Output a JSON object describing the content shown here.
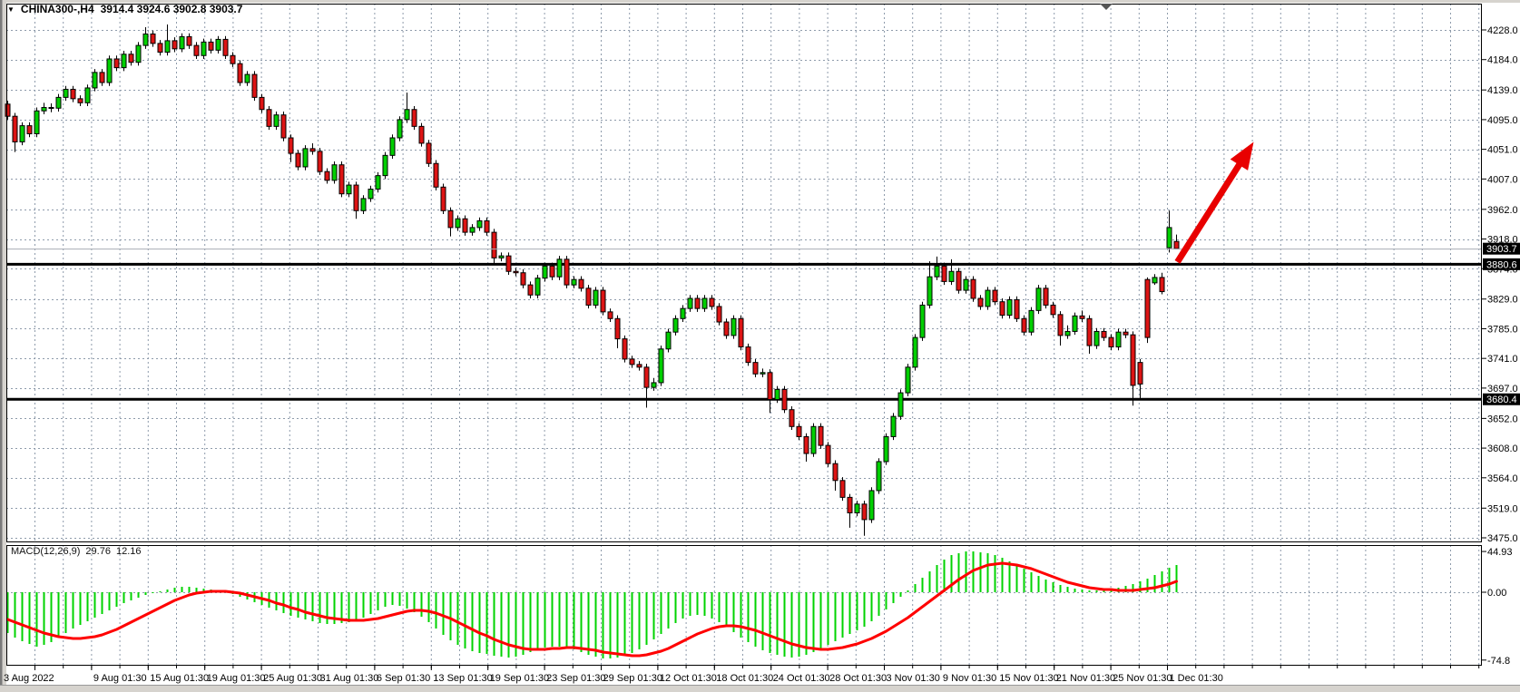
{
  "header": {
    "dropdown_glyph": "▼",
    "symbol_period": "CHINA300-,H4",
    "ohlc_text": "3914.4 3924.6 3902.8 3903.7"
  },
  "price_axis": {
    "tick_labels": [
      "4228.0",
      "4184.0",
      "4139.0",
      "4095.0",
      "4051.0",
      "4007.0",
      "3962.0",
      "3918.0",
      "3874.0",
      "3829.0",
      "3785.0",
      "3741.0",
      "3697.0",
      "3652.0",
      "3608.0",
      "3564.0",
      "3519.0",
      "3475.0"
    ],
    "bid_badge": "3903.7",
    "line_badges": [
      "3880.6",
      "3680.4"
    ]
  },
  "time_axis": {
    "labels": [
      "3 Aug 2022",
      "9 Aug 01:30",
      "15 Aug 01:30",
      "19 Aug 01:30",
      "25 Aug 01:30",
      "31 Aug 01:30",
      "6 Sep 01:30",
      "13 Sep 01:30",
      "19 Sep 01:30",
      "23 Sep 01:30",
      "29 Sep 01:30",
      "12 Oct 01:30",
      "18 Oct 01:30",
      "24 Oct 01:30",
      "28 Oct 01:30",
      "3 Nov 01:30",
      "9 Nov 01:30",
      "15 Nov 01:30",
      "21 Nov 01:30",
      "25 Nov 01:30",
      "1 Dec 01:30"
    ]
  },
  "macd": {
    "name": "MACD(12,26,9)",
    "value_main": "29.76",
    "value_signal": "12.16",
    "axis_labels": [
      "44.93",
      "0.00",
      "-74.8"
    ]
  },
  "colors": {
    "bull": "#00cf00",
    "bear": "#dd1414",
    "candle_outline": "#000000",
    "grid": "#8e9bab",
    "macd_bar": "#00d300",
    "macd_signal": "#ff0000",
    "hline": "#000000",
    "bid_line": "#a8adb5",
    "badge_bg": "#000000",
    "badge_text": "#ffffff",
    "arrow": "#e80000",
    "frame": "#d6d3ce"
  },
  "chart_data": {
    "type": "candlestick",
    "symbol": "CHINA300-",
    "timeframe": "H4",
    "last_bar_ohlc": {
      "open": 3914.4,
      "high": 3924.6,
      "low": 3902.8,
      "close": 3903.7
    },
    "current_price": 3903.7,
    "horizontal_lines": [
      3880.6,
      3680.4
    ],
    "price_axis_range": {
      "top_tick": 4228.0,
      "bottom_tick": 3475.0,
      "tick_step": 44.5
    },
    "grid": "dashed",
    "candles": [
      [
        4118,
        4123,
        4095,
        4100
      ],
      [
        4100,
        4105,
        4047,
        4062
      ],
      [
        4062,
        4091,
        4057,
        4086
      ],
      [
        4086,
        4091,
        4069,
        4074
      ],
      [
        4074,
        4113,
        4069,
        4108
      ],
      [
        4108,
        4120,
        4103,
        4113
      ],
      [
        4113,
        4119,
        4106,
        4112
      ],
      [
        4112,
        4133,
        4107,
        4128
      ],
      [
        4128,
        4145,
        4123,
        4140
      ],
      [
        4140,
        4145,
        4121,
        4126
      ],
      [
        4126,
        4131,
        4115,
        4120
      ],
      [
        4120,
        4147,
        4115,
        4142
      ],
      [
        4142,
        4170,
        4137,
        4165
      ],
      [
        4165,
        4170,
        4145,
        4150
      ],
      [
        4150,
        4190,
        4145,
        4185
      ],
      [
        4185,
        4190,
        4167,
        4172
      ],
      [
        4172,
        4197,
        4167,
        4192
      ],
      [
        4192,
        4197,
        4175,
        4180
      ],
      [
        4180,
        4210,
        4175,
        4205
      ],
      [
        4205,
        4232,
        4200,
        4222
      ],
      [
        4222,
        4227,
        4203,
        4208
      ],
      [
        4208,
        4213,
        4190,
        4195
      ],
      [
        4195,
        4236,
        4190,
        4212
      ],
      [
        4212,
        4217,
        4195,
        4200
      ],
      [
        4200,
        4223,
        4195,
        4218
      ],
      [
        4218,
        4223,
        4200,
        4205
      ],
      [
        4205,
        4210,
        4185,
        4190
      ],
      [
        4190,
        4215,
        4185,
        4210
      ],
      [
        4210,
        4215,
        4193,
        4198
      ],
      [
        4198,
        4219,
        4193,
        4214
      ],
      [
        4214,
        4219,
        4185,
        4190
      ],
      [
        4190,
        4195,
        4173,
        4178
      ],
      [
        4178,
        4183,
        4145,
        4150
      ],
      [
        4150,
        4167,
        4145,
        4162
      ],
      [
        4162,
        4167,
        4123,
        4128
      ],
      [
        4128,
        4133,
        4105,
        4110
      ],
      [
        4110,
        4115,
        4080,
        4085
      ],
      [
        4085,
        4107,
        4080,
        4102
      ],
      [
        4102,
        4107,
        4063,
        4068
      ],
      [
        4068,
        4073,
        4032,
        4045
      ],
      [
        4045,
        4050,
        4020,
        4025
      ],
      [
        4025,
        4057,
        4020,
        4052
      ],
      [
        4052,
        4060,
        4043,
        4048
      ],
      [
        4048,
        4053,
        4013,
        4018
      ],
      [
        4018,
        4023,
        4000,
        4005
      ],
      [
        4005,
        4033,
        4000,
        4028
      ],
      [
        4028,
        4033,
        3980,
        3985
      ],
      [
        3985,
        4003,
        3980,
        3998
      ],
      [
        3998,
        4003,
        3948,
        3960
      ],
      [
        3960,
        3983,
        3955,
        3978
      ],
      [
        3978,
        3997,
        3973,
        3992
      ],
      [
        3992,
        4017,
        3987,
        4012
      ],
      [
        4012,
        4047,
        4007,
        4042
      ],
      [
        4042,
        4073,
        4037,
        4068
      ],
      [
        4068,
        4100,
        4063,
        4095
      ],
      [
        4095,
        4135,
        4090,
        4110
      ],
      [
        4110,
        4115,
        4080,
        4085
      ],
      [
        4085,
        4090,
        4055,
        4060
      ],
      [
        4060,
        4065,
        4025,
        4030
      ],
      [
        4030,
        4035,
        3990,
        3995
      ],
      [
        3995,
        4000,
        3955,
        3960
      ],
      [
        3960,
        3965,
        3922,
        3935
      ],
      [
        3935,
        3953,
        3930,
        3948
      ],
      [
        3948,
        3953,
        3923,
        3928
      ],
      [
        3928,
        3940,
        3923,
        3935
      ],
      [
        3935,
        3950,
        3930,
        3945
      ],
      [
        3945,
        3950,
        3923,
        3928
      ],
      [
        3928,
        3933,
        3880,
        3890
      ],
      [
        3890,
        3898,
        3885,
        3893
      ],
      [
        3893,
        3898,
        3865,
        3870
      ],
      [
        3870,
        3875,
        3863,
        3868
      ],
      [
        3868,
        3873,
        3845,
        3850
      ],
      [
        3850,
        3855,
        3830,
        3835
      ],
      [
        3835,
        3865,
        3830,
        3860
      ],
      [
        3860,
        3883,
        3855,
        3878
      ],
      [
        3878,
        3883,
        3857,
        3862
      ],
      [
        3862,
        3893,
        3857,
        3888
      ],
      [
        3888,
        3893,
        3845,
        3850
      ],
      [
        3850,
        3863,
        3845,
        3858
      ],
      [
        3858,
        3863,
        3840,
        3845
      ],
      [
        3845,
        3850,
        3815,
        3820
      ],
      [
        3820,
        3847,
        3815,
        3842
      ],
      [
        3842,
        3847,
        3805,
        3810
      ],
      [
        3810,
        3815,
        3795,
        3800
      ],
      [
        3800,
        3805,
        3756,
        3770
      ],
      [
        3770,
        3775,
        3735,
        3740
      ],
      [
        3740,
        3745,
        3727,
        3732
      ],
      [
        3732,
        3737,
        3723,
        3728
      ],
      [
        3728,
        3733,
        3668,
        3698
      ],
      [
        3698,
        3712,
        3693,
        3705
      ],
      [
        3705,
        3760,
        3700,
        3755
      ],
      [
        3755,
        3785,
        3750,
        3780
      ],
      [
        3780,
        3805,
        3775,
        3800
      ],
      [
        3800,
        3820,
        3795,
        3815
      ],
      [
        3815,
        3835,
        3810,
        3830
      ],
      [
        3830,
        3835,
        3810,
        3815
      ],
      [
        3815,
        3835,
        3810,
        3830
      ],
      [
        3830,
        3835,
        3813,
        3818
      ],
      [
        3818,
        3823,
        3790,
        3795
      ],
      [
        3795,
        3800,
        3770,
        3775
      ],
      [
        3775,
        3805,
        3770,
        3800
      ],
      [
        3800,
        3805,
        3753,
        3758
      ],
      [
        3758,
        3763,
        3730,
        3735
      ],
      [
        3735,
        3740,
        3713,
        3718
      ],
      [
        3718,
        3726,
        3713,
        3720
      ],
      [
        3720,
        3725,
        3660,
        3680
      ],
      [
        3680,
        3700,
        3675,
        3695
      ],
      [
        3695,
        3700,
        3660,
        3665
      ],
      [
        3665,
        3670,
        3635,
        3640
      ],
      [
        3640,
        3645,
        3620,
        3625
      ],
      [
        3625,
        3630,
        3588,
        3600
      ],
      [
        3600,
        3645,
        3595,
        3640
      ],
      [
        3640,
        3645,
        3607,
        3612
      ],
      [
        3612,
        3617,
        3580,
        3585
      ],
      [
        3585,
        3590,
        3545,
        3560
      ],
      [
        3560,
        3565,
        3530,
        3535
      ],
      [
        3535,
        3540,
        3490,
        3512
      ],
      [
        3512,
        3530,
        3507,
        3525
      ],
      [
        3525,
        3530,
        3478,
        3502
      ],
      [
        3502,
        3550,
        3497,
        3545
      ],
      [
        3545,
        3593,
        3540,
        3588
      ],
      [
        3588,
        3630,
        3583,
        3625
      ],
      [
        3625,
        3660,
        3620,
        3655
      ],
      [
        3655,
        3695,
        3650,
        3690
      ],
      [
        3690,
        3733,
        3685,
        3728
      ],
      [
        3728,
        3777,
        3723,
        3772
      ],
      [
        3772,
        3825,
        3767,
        3820
      ],
      [
        3820,
        3885,
        3815,
        3862
      ],
      [
        3862,
        3892,
        3857,
        3878
      ],
      [
        3878,
        3883,
        3850,
        3855
      ],
      [
        3855,
        3888,
        3850,
        3870
      ],
      [
        3870,
        3875,
        3837,
        3842
      ],
      [
        3842,
        3863,
        3837,
        3858
      ],
      [
        3858,
        3863,
        3825,
        3830
      ],
      [
        3830,
        3835,
        3813,
        3818
      ],
      [
        3818,
        3847,
        3813,
        3842
      ],
      [
        3842,
        3847,
        3820,
        3825
      ],
      [
        3825,
        3830,
        3800,
        3805
      ],
      [
        3805,
        3833,
        3800,
        3828
      ],
      [
        3828,
        3833,
        3795,
        3800
      ],
      [
        3800,
        3805,
        3775,
        3780
      ],
      [
        3780,
        3817,
        3775,
        3812
      ],
      [
        3812,
        3850,
        3807,
        3845
      ],
      [
        3845,
        3850,
        3815,
        3820
      ],
      [
        3820,
        3825,
        3801,
        3806
      ],
      [
        3806,
        3811,
        3760,
        3775
      ],
      [
        3775,
        3790,
        3770,
        3781
      ],
      [
        3781,
        3809,
        3776,
        3804
      ],
      [
        3804,
        3812,
        3795,
        3800
      ],
      [
        3800,
        3805,
        3748,
        3760
      ],
      [
        3760,
        3786,
        3755,
        3781
      ],
      [
        3781,
        3786,
        3767,
        3772
      ],
      [
        3772,
        3777,
        3753,
        3758
      ],
      [
        3758,
        3785,
        3753,
        3780
      ],
      [
        3780,
        3785,
        3771,
        3776
      ],
      [
        3776,
        3781,
        3671,
        3701
      ],
      [
        3735,
        3740,
        3682,
        3703
      ],
      [
        3858,
        3861,
        3764,
        3772
      ],
      [
        3853,
        3866,
        3850,
        3861
      ],
      [
        3861,
        3868,
        3836,
        3840
      ],
      [
        3905,
        3960,
        3898,
        3935
      ],
      [
        3914.4,
        3924.6,
        3902.8,
        3903.7
      ]
    ],
    "indicator": {
      "type": "MACD",
      "params": [
        12,
        26,
        9
      ],
      "last_macd": 29.76,
      "last_signal": 12.16,
      "axis": {
        "max": 44.93,
        "zero": 0.0,
        "min": -74.8
      },
      "histogram": [
        -45,
        -50,
        -54,
        -57,
        -60,
        -58,
        -55,
        -50,
        -45,
        -40,
        -36,
        -32,
        -28,
        -24,
        -20,
        -16,
        -12,
        -9,
        -6,
        -3,
        -1,
        1,
        3,
        5,
        6,
        6,
        5,
        4,
        3,
        2,
        0,
        -2,
        -5,
        -8,
        -11,
        -14,
        -17,
        -20,
        -23,
        -26,
        -28,
        -30,
        -32,
        -34,
        -35,
        -35,
        -34,
        -33,
        -31,
        -28,
        -24,
        -20,
        -16,
        -14,
        -15,
        -18,
        -22,
        -27,
        -33,
        -40,
        -47,
        -53,
        -58,
        -62,
        -65,
        -67,
        -68,
        -70,
        -71,
        -72,
        -71,
        -69,
        -66,
        -63,
        -61,
        -60,
        -60,
        -61,
        -63,
        -66,
        -69,
        -71,
        -73,
        -73,
        -72,
        -70,
        -67,
        -63,
        -58,
        -52,
        -46,
        -40,
        -34,
        -29,
        -26,
        -25,
        -26,
        -29,
        -33,
        -38,
        -44,
        -50,
        -55,
        -60,
        -64,
        -67,
        -69,
        -71,
        -72,
        -71,
        -69,
        -66,
        -62,
        -58,
        -54,
        -50,
        -46,
        -42,
        -38,
        -32,
        -26,
        -19,
        -12,
        -5,
        2,
        9,
        16,
        23,
        30,
        36,
        41,
        43,
        45,
        45,
        44,
        43,
        41,
        38,
        34,
        30,
        26,
        22,
        18,
        14,
        11,
        8,
        6,
        4,
        3,
        2,
        2,
        3,
        4,
        5,
        7,
        9,
        12,
        15,
        19,
        23,
        27,
        30
      ],
      "signal": [
        -30,
        -33,
        -36,
        -39,
        -42,
        -45,
        -47,
        -49,
        -50,
        -51,
        -51,
        -50,
        -49,
        -47,
        -44,
        -41,
        -37,
        -33,
        -29,
        -25,
        -21,
        -17,
        -13,
        -9,
        -6,
        -3,
        -1,
        0,
        1,
        1,
        1,
        0,
        -1,
        -3,
        -5,
        -7,
        -9,
        -12,
        -14,
        -17,
        -19,
        -22,
        -24,
        -26,
        -28,
        -29,
        -30,
        -31,
        -31,
        -31,
        -30,
        -29,
        -27,
        -25,
        -23,
        -21,
        -20,
        -20,
        -21,
        -23,
        -26,
        -29,
        -33,
        -37,
        -41,
        -45,
        -48,
        -52,
        -55,
        -58,
        -60,
        -62,
        -63,
        -63,
        -63,
        -62,
        -62,
        -61,
        -61,
        -62,
        -63,
        -64,
        -66,
        -67,
        -68,
        -69,
        -70,
        -70,
        -69,
        -67,
        -65,
        -62,
        -58,
        -54,
        -50,
        -46,
        -43,
        -40,
        -38,
        -37,
        -37,
        -38,
        -40,
        -42,
        -45,
        -48,
        -51,
        -54,
        -57,
        -59,
        -61,
        -62,
        -63,
        -63,
        -62,
        -61,
        -59,
        -57,
        -54,
        -51,
        -47,
        -43,
        -38,
        -33,
        -28,
        -22,
        -16,
        -10,
        -4,
        2,
        8,
        14,
        19,
        24,
        27,
        30,
        31,
        32,
        31,
        30,
        28,
        26,
        23,
        20,
        17,
        14,
        11,
        9,
        7,
        5,
        4,
        3,
        3,
        2,
        2,
        2,
        3,
        4,
        5,
        7,
        9,
        12
      ]
    },
    "annotations": [
      {
        "type": "up-arrow",
        "color": "red",
        "from_price": 3884,
        "to_price": 4062,
        "run_bars": 10.5,
        "note": "bullish breakout arrow above 3880.6 line"
      }
    ]
  }
}
